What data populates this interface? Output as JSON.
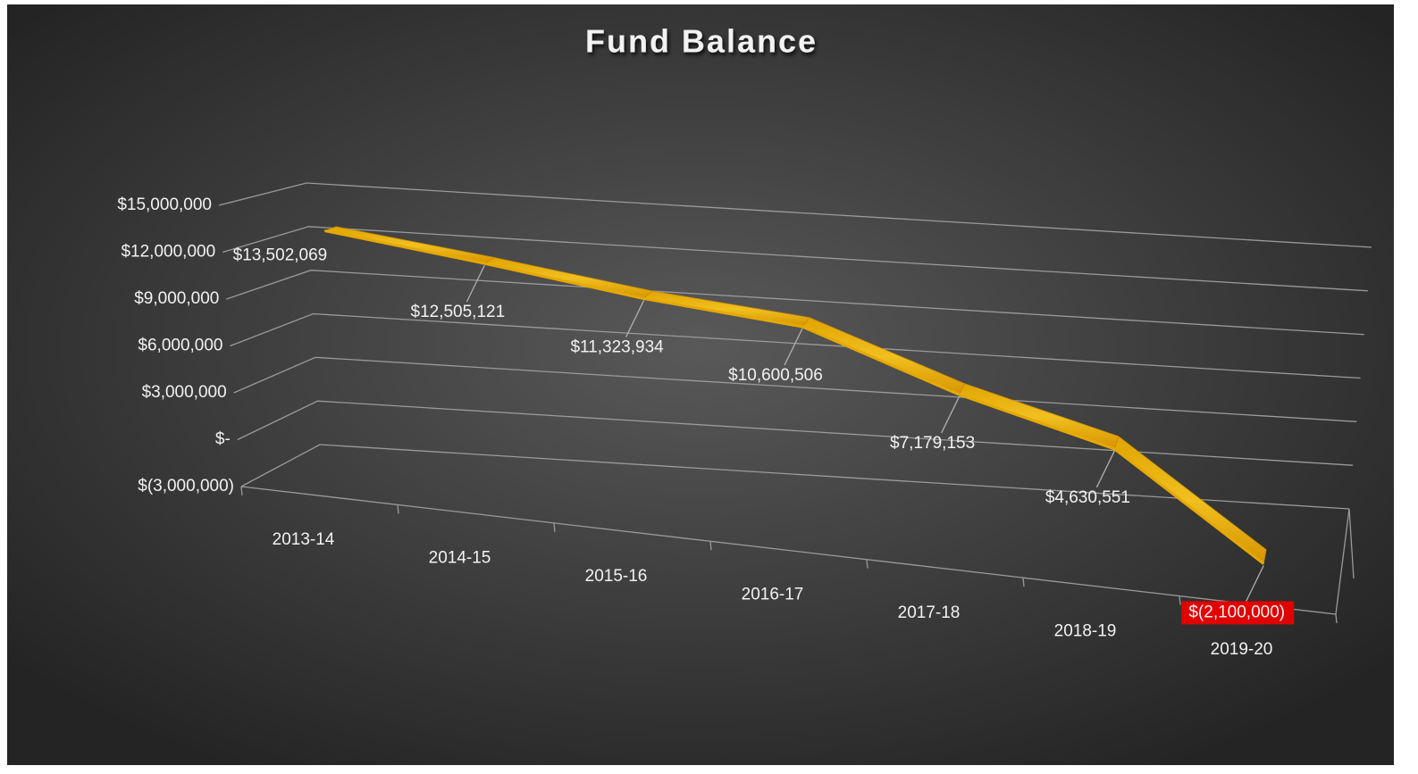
{
  "chart_data": {
    "type": "line3d",
    "title": "Fund Balance",
    "categories": [
      "2013-14",
      "2014-15",
      "2015-16",
      "2016-17",
      "2017-18",
      "2018-19",
      "2019-20"
    ],
    "series": [
      {
        "name": "Fund Balance",
        "color": "#e6a800",
        "values": [
          13502069,
          12505121,
          11323934,
          10600506,
          7179153,
          4630551,
          -2100000
        ],
        "value_labels": [
          "$13,502,069",
          "$12,505,121",
          "$11,323,934",
          "$10,600,506",
          "$7,179,153",
          "$4,630,551",
          "$(2,100,000)"
        ]
      }
    ],
    "ylim": [
      -3000000,
      15000000
    ],
    "yticks": [
      {
        "value": -3000000,
        "label": "$(3,000,000)"
      },
      {
        "value": 0,
        "label": "$-"
      },
      {
        "value": 3000000,
        "label": "$3,000,000"
      },
      {
        "value": 6000000,
        "label": "$6,000,000"
      },
      {
        "value": 9000000,
        "label": "$9,000,000"
      },
      {
        "value": 12000000,
        "label": "$12,000,000"
      },
      {
        "value": 15000000,
        "label": "$15,000,000"
      }
    ],
    "grid": true,
    "negative_label_color": "#e00000"
  }
}
